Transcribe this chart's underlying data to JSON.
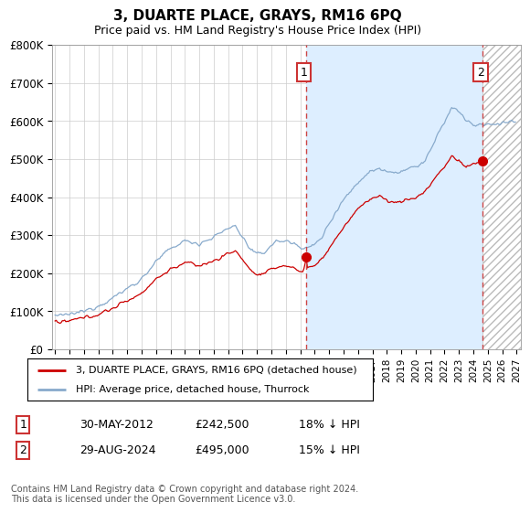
{
  "title": "3, DUARTE PLACE, GRAYS, RM16 6PQ",
  "subtitle": "Price paid vs. HM Land Registry's House Price Index (HPI)",
  "legend_line1": "3, DUARTE PLACE, GRAYS, RM16 6PQ (detached house)",
  "legend_line2": "HPI: Average price, detached house, Thurrock",
  "annotation1_label": "1",
  "annotation1_date": "30-MAY-2012",
  "annotation1_price": "£242,500",
  "annotation1_hpi": "18% ↓ HPI",
  "annotation2_label": "2",
  "annotation2_date": "29-AUG-2024",
  "annotation2_price": "£495,000",
  "annotation2_hpi": "15% ↓ HPI",
  "footer": "Contains HM Land Registry data © Crown copyright and database right 2024.\nThis data is licensed under the Open Government Licence v3.0.",
  "ylim": [
    0,
    800000
  ],
  "yticks": [
    0,
    100000,
    200000,
    300000,
    400000,
    500000,
    600000,
    700000,
    800000
  ],
  "ytick_labels": [
    "£0",
    "£100K",
    "£200K",
    "£300K",
    "£400K",
    "£500K",
    "£600K",
    "£700K",
    "£800K"
  ],
  "xlim_start": 1994.8,
  "xlim_end": 2027.3,
  "point1_x": 2012.41,
  "point1_y": 242500,
  "point2_x": 2024.66,
  "point2_y": 495000,
  "hatch_start": 2024.66,
  "shade_start": 2012.41,
  "chart_bg": "#ffffff",
  "shade_color": "#ddeeff",
  "red_color": "#cc0000",
  "blue_color": "#88aacc",
  "grid_color": "#cccccc"
}
